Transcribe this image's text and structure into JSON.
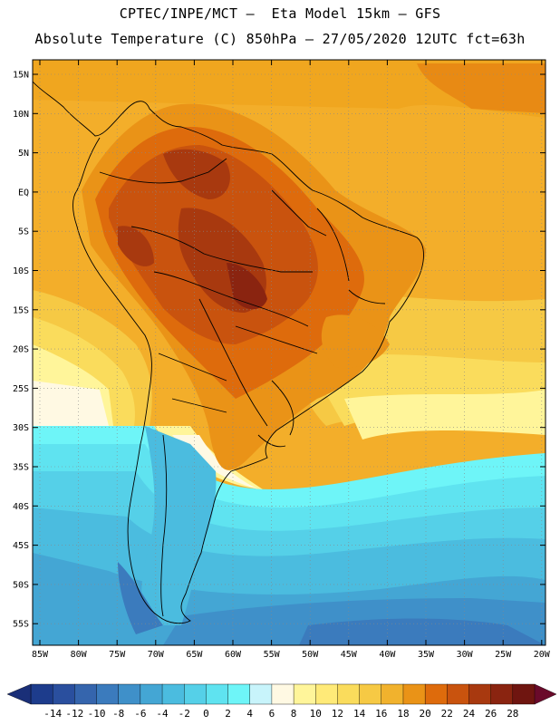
{
  "title_line1": "CPTEC/INPE/MCT –  Eta Model 15km – GFS",
  "title_line2": "Absolute Temperature (C) 850hPa – 27/05/2020 12UTC fct=63h",
  "lat_labels": [
    "15N",
    "10N",
    "5N",
    "EQ",
    "5S",
    "10S",
    "15S",
    "20S",
    "25S",
    "30S",
    "35S",
    "40S",
    "45S",
    "50S",
    "55S"
  ],
  "lon_labels": [
    "85W",
    "80W",
    "75W",
    "70W",
    "65W",
    "60W",
    "55W",
    "50W",
    "45W",
    "40W",
    "35W",
    "30W",
    "25W",
    "20W"
  ],
  "colorbar": {
    "labels": [
      "-14",
      "-12",
      "-10",
      "-8",
      "-6",
      "-4",
      "-2",
      "0",
      "2",
      "4",
      "6",
      "8",
      "10",
      "12",
      "14",
      "16",
      "18",
      "20",
      "22",
      "24",
      "26",
      "28"
    ],
    "colors": [
      "#1d3c8c",
      "#2a4f9e",
      "#3565ad",
      "#3b7bbd",
      "#3f90c9",
      "#44a6d4",
      "#4bbcdf",
      "#55d0e8",
      "#5fe3f0",
      "#6ef5f8",
      "#c8f4fb",
      "#fff9e3",
      "#fff59a",
      "#ffea78",
      "#fadc5c",
      "#f6c944",
      "#f1b22d",
      "#ea9317",
      "#de6b0c",
      "#c9530e",
      "#a8390f",
      "#8a2410",
      "#6f1510"
    ],
    "low_arrow_color": "#1a2f78",
    "high_arrow_color": "#6a0a2a"
  }
}
